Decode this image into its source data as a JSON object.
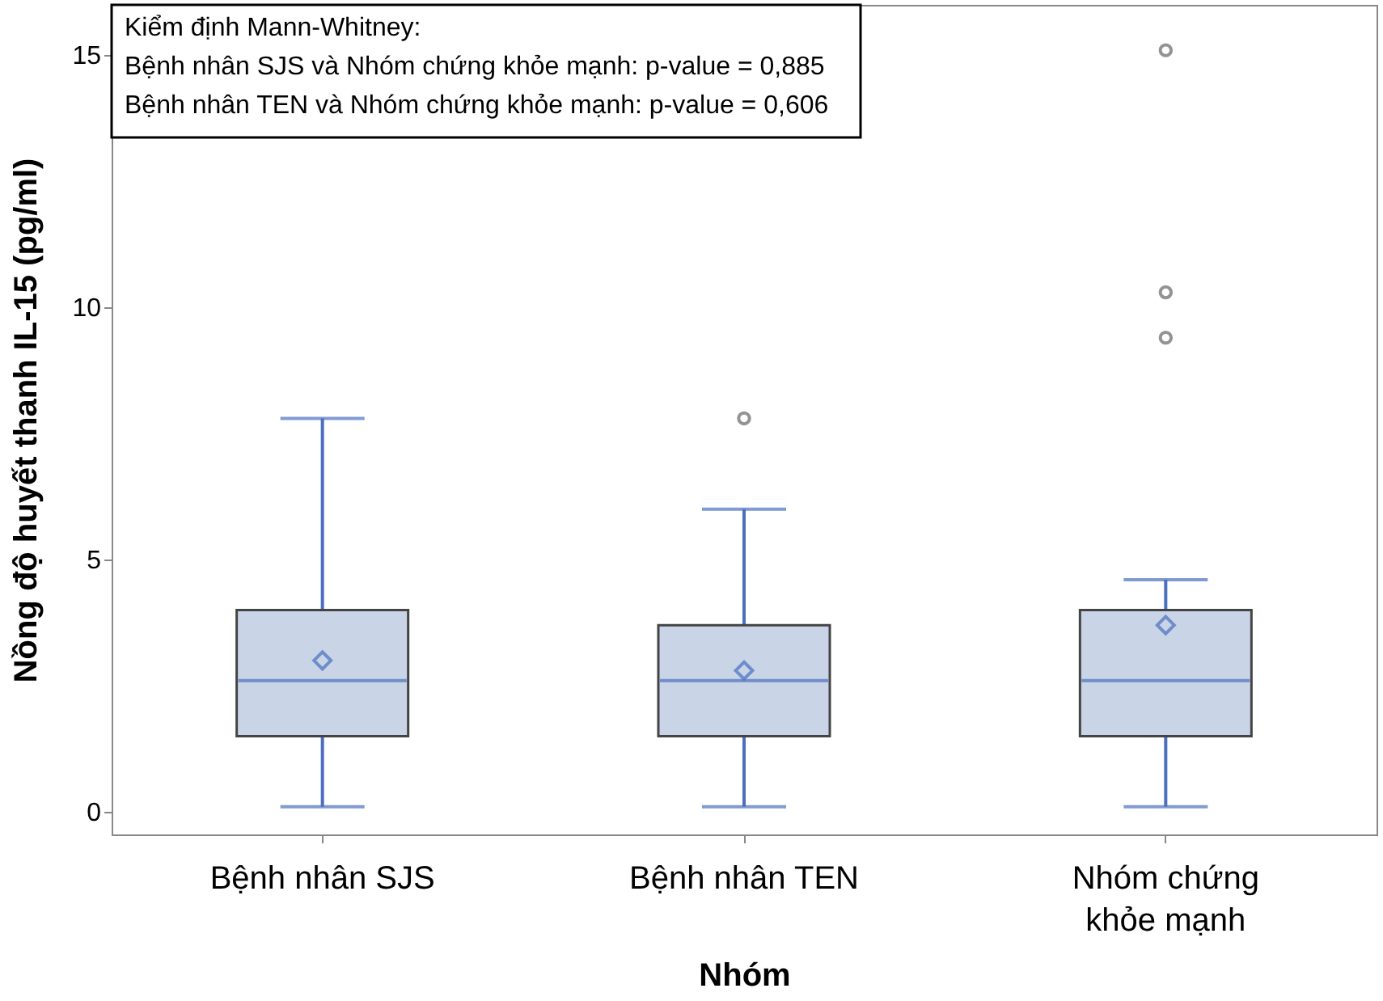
{
  "chart_data": {
    "type": "box",
    "xlabel": "Nhóm",
    "ylabel": "Nồng độ huyết thanh IL-15 (pg/ml)",
    "categories": [
      "Bệnh nhân SJS",
      "Bệnh nhân TEN",
      "Nhóm chứng khỏe mạnh"
    ],
    "boxes": [
      {
        "low": 0.1,
        "q1": 1.5,
        "median": 2.6,
        "q3": 4.0,
        "high": 7.8,
        "mean": 3.0
      },
      {
        "low": 0.1,
        "q1": 1.5,
        "median": 2.6,
        "q3": 3.7,
        "high": 6.0,
        "mean": 2.8,
        "outliers": [
          7.8
        ]
      },
      {
        "low": 0.1,
        "q1": 1.5,
        "median": 2.6,
        "q3": 4.0,
        "high": 4.6,
        "mean": 3.7,
        "outliers": [
          15.1,
          10.3,
          9.4
        ]
      }
    ],
    "color": "#c9d5e6",
    "ylim": [
      -0.45,
      16
    ],
    "yticks": [
      0,
      5,
      10,
      15
    ],
    "grid": false,
    "annotations": [
      "Kiểm định Mann-Whitney:",
      "Bệnh nhân SJS và Nhóm chứng khỏe mạnh: p-value = 0,885",
      "Bệnh nhân TEN và Nhóm chứng khỏe mạnh: p-value = 0,606"
    ]
  }
}
